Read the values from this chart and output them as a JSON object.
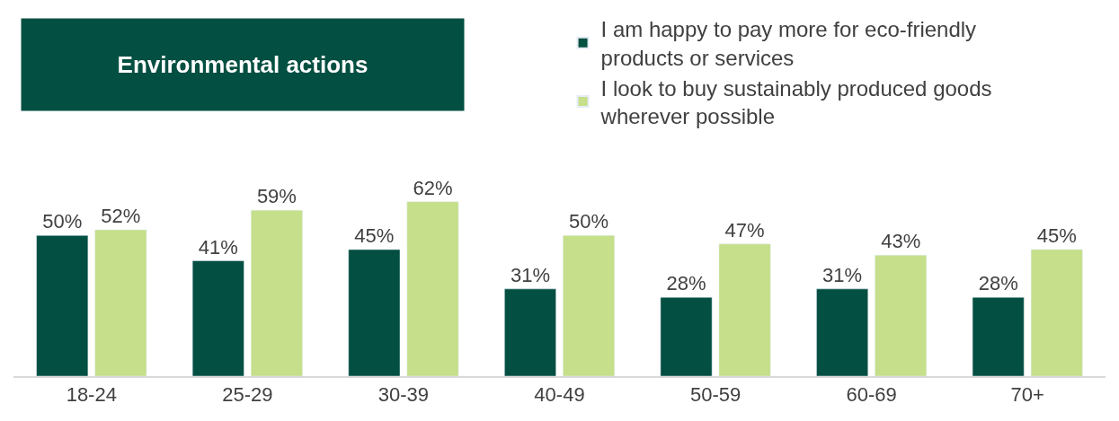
{
  "chart_data": {
    "type": "bar",
    "title": "Environmental actions",
    "categories": [
      "18-24",
      "25-29",
      "30-39",
      "40-49",
      "50-59",
      "60-69",
      "70+"
    ],
    "series": [
      {
        "name": "I am happy to pay more for eco-friendly products or services",
        "color": "#034f41",
        "values": [
          50,
          41,
          45,
          31,
          28,
          31,
          28
        ],
        "value_labels": [
          "50%",
          "41%",
          "45%",
          "31%",
          "28%",
          "31%",
          "28%"
        ]
      },
      {
        "name": "I look to buy sustainably produced goods wherever possible",
        "color": "#c5df8a",
        "values": [
          52,
          59,
          62,
          50,
          47,
          43,
          45
        ],
        "value_labels": [
          "52%",
          "59%",
          "62%",
          "50%",
          "47%",
          "43%",
          "45%"
        ]
      }
    ],
    "legend": "top right"
  }
}
